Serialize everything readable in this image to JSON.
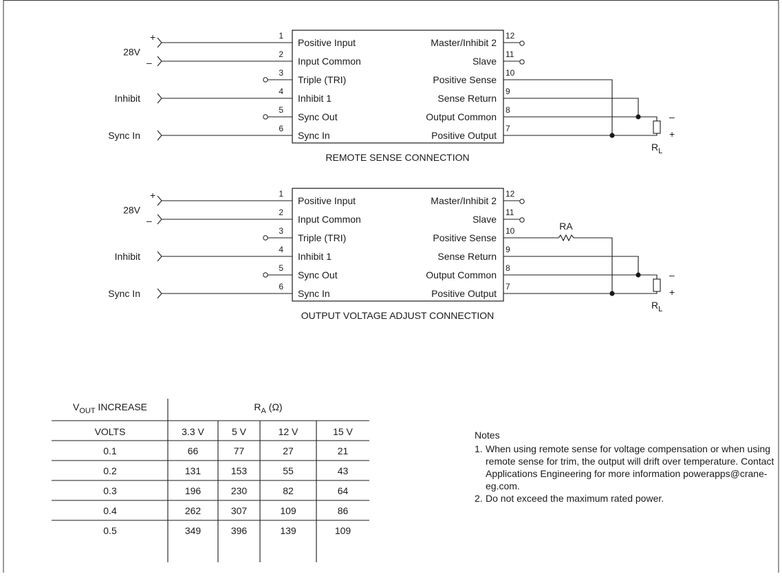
{
  "diagram1": {
    "caption": "REMOTE SENSE CONNECTION",
    "inputs": {
      "v28": "28V",
      "plus": "+",
      "minus": "–",
      "inhibit": "Inhibit",
      "sync_in": "Sync In"
    },
    "left_pins": [
      {
        "num": "1",
        "label": "Positive Input"
      },
      {
        "num": "2",
        "label": "Input Common"
      },
      {
        "num": "3",
        "label": "Triple (TRI)"
      },
      {
        "num": "4",
        "label": "Inhibit 1"
      },
      {
        "num": "5",
        "label": "Sync Out"
      },
      {
        "num": "6",
        "label": "Sync In"
      }
    ],
    "right_pins": [
      {
        "num": "12",
        "label": "Master/Inhibit 2"
      },
      {
        "num": "11",
        "label": "Slave"
      },
      {
        "num": "10",
        "label": "Positive Sense"
      },
      {
        "num": "9",
        "label": "Sense Return"
      },
      {
        "num": "8",
        "label": "Output Common"
      },
      {
        "num": "7",
        "label": "Positive Output"
      }
    ],
    "load": {
      "minus": "–",
      "plus": "+",
      "name": "R",
      "sub": "L"
    }
  },
  "diagram2": {
    "caption": "OUTPUT VOLTAGE ADJUST CONNECTION",
    "resistor_label": "RA",
    "inputs": {
      "v28": "28V",
      "plus": "+",
      "minus": "–",
      "inhibit": "Inhibit",
      "sync_in": "Sync In"
    },
    "left_pins": [
      {
        "num": "1",
        "label": "Positive Input"
      },
      {
        "num": "2",
        "label": "Input Common"
      },
      {
        "num": "3",
        "label": "Triple (TRI)"
      },
      {
        "num": "4",
        "label": "Inhibit 1"
      },
      {
        "num": "5",
        "label": "Sync Out"
      },
      {
        "num": "6",
        "label": "Sync In"
      }
    ],
    "right_pins": [
      {
        "num": "12",
        "label": "Master/Inhibit 2"
      },
      {
        "num": "11",
        "label": "Slave"
      },
      {
        "num": "10",
        "label": "Positive Sense"
      },
      {
        "num": "9",
        "label": "Sense Return"
      },
      {
        "num": "8",
        "label": "Output Common"
      },
      {
        "num": "7",
        "label": "Positive Output"
      }
    ],
    "load": {
      "minus": "–",
      "plus": "+",
      "name": "R",
      "sub": "L"
    }
  },
  "table": {
    "col1_header_main": "V",
    "col1_header_sub": "OUT",
    "col1_header_rest": " INCREASE",
    "col1_subheader": "VOLTS",
    "group_header_main": "R",
    "group_header_sub": "A",
    "group_header_rest": " (Ω)",
    "columns": [
      "3.3 V",
      "5 V",
      "12 V",
      "15 V"
    ],
    "rows": [
      [
        "0.1",
        "66",
        "77",
        "27",
        "21"
      ],
      [
        "0.2",
        "131",
        "153",
        "55",
        "43"
      ],
      [
        "0.3",
        "196",
        "230",
        "82",
        "64"
      ],
      [
        "0.4",
        "262",
        "307",
        "109",
        "86"
      ],
      [
        "0.5",
        "349",
        "396",
        "139",
        "109"
      ]
    ]
  },
  "notes": {
    "title": "Notes",
    "items": [
      {
        "num": "1.",
        "text": "When using remote sense for voltage compensation or when using remote sense for trim, the output will drift over temperature. Contact Applications Engineering for more information powerapps@crane-eg.com."
      },
      {
        "num": "2.",
        "text": "Do not exceed the maximum rated power."
      }
    ]
  }
}
